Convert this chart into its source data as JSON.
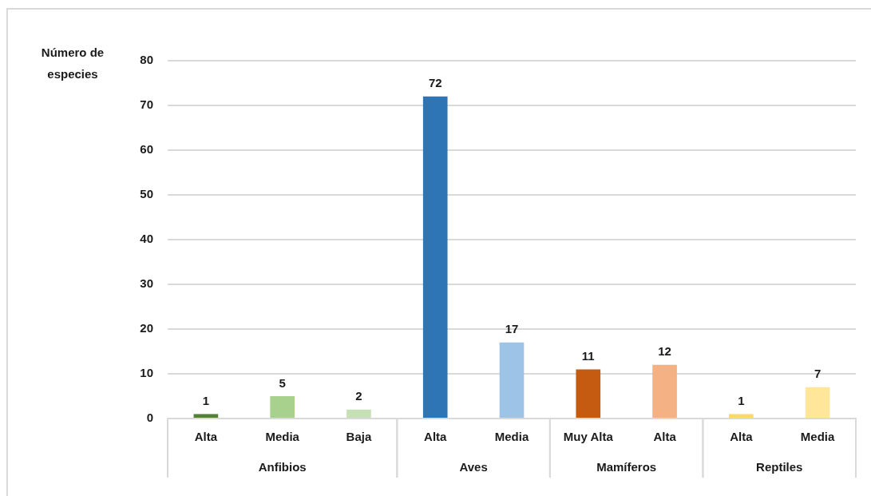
{
  "chart_data": {
    "type": "bar",
    "ylabel": "Número de especies",
    "categories": [
      "Alta",
      "Media",
      "Baja",
      "Alta",
      "Media",
      "Muy Alta",
      "Alta",
      "Alta",
      "Media"
    ],
    "series": [
      {
        "values": [
          1,
          5,
          2,
          null,
          null,
          null,
          null,
          null,
          null
        ],
        "colors": [
          "#548235",
          "#a9d18e",
          "#c5e0b4",
          null,
          null,
          null,
          null,
          null,
          null
        ]
      },
      {
        "values": [
          null,
          null,
          null,
          72,
          17,
          null,
          null,
          null,
          null
        ],
        "colors": [
          null,
          null,
          null,
          "#2e75b6",
          "#9dc3e6",
          null,
          null,
          null,
          null
        ]
      },
      {
        "values": [
          null,
          null,
          null,
          null,
          null,
          11,
          12,
          null,
          null
        ],
        "colors": [
          null,
          null,
          null,
          null,
          null,
          "#c55a11",
          "#f4b183",
          null,
          null
        ]
      },
      {
        "values": [
          null,
          null,
          null,
          null,
          null,
          null,
          null,
          1,
          7
        ],
        "colors": [
          null,
          null,
          null,
          null,
          null,
          null,
          null,
          "#ffd966",
          "#ffe699"
        ]
      }
    ],
    "annotations": [
      "Anfibios",
      "Aves",
      "Mamíferos",
      "Reptiles"
    ],
    "ylim": [
      0,
      80
    ],
    "yticks": [
      0,
      10,
      20,
      30,
      40,
      50,
      60,
      70,
      80
    ],
    "grid": "y",
    "data_labels": true
  }
}
